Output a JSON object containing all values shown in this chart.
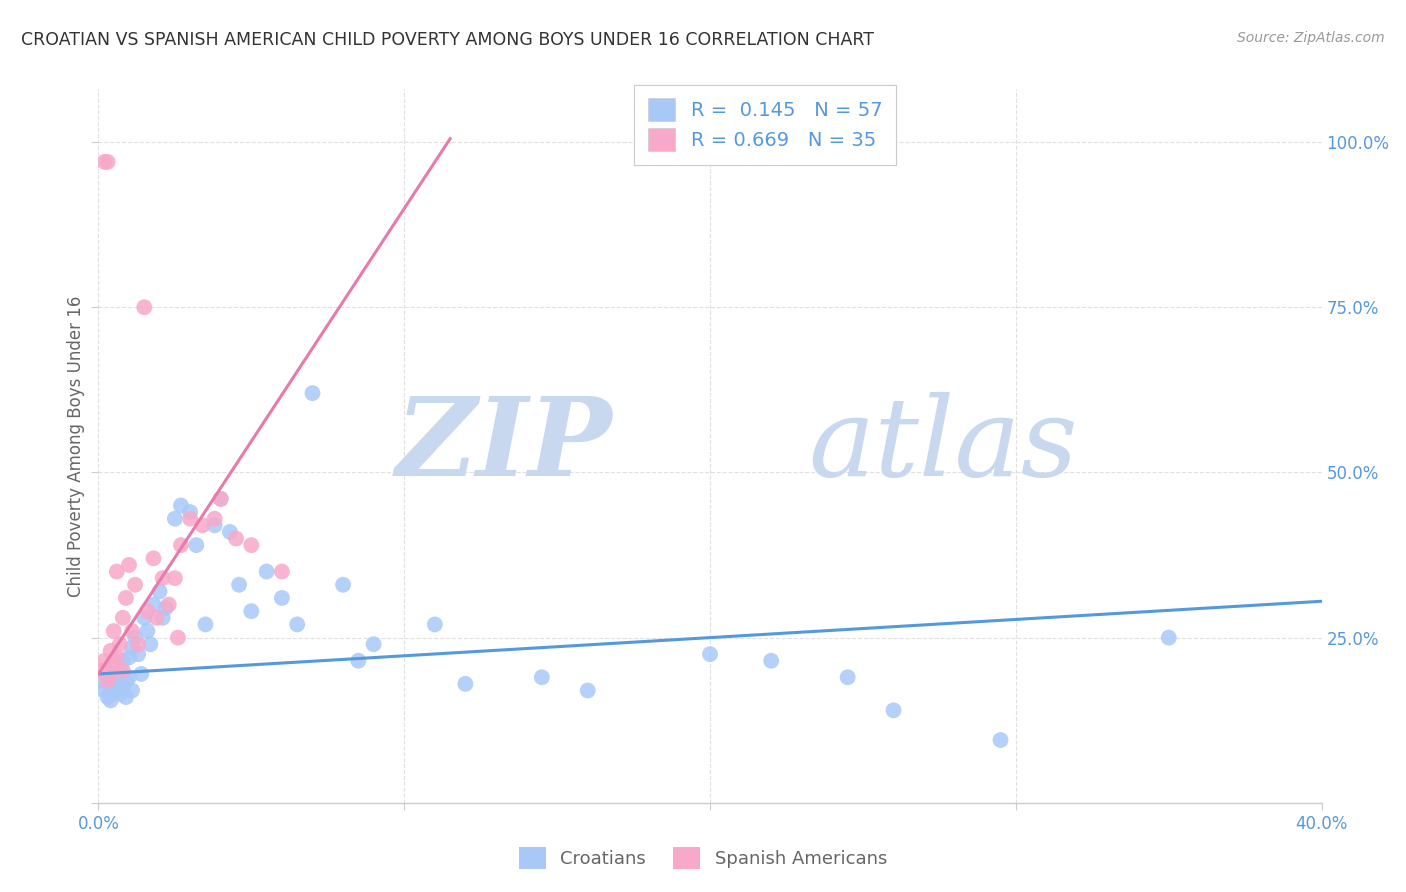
{
  "title": "CROATIAN VS SPANISH AMERICAN CHILD POVERTY AMONG BOYS UNDER 16 CORRELATION CHART",
  "source": "Source: ZipAtlas.com",
  "ylabel": "Child Poverty Among Boys Under 16",
  "xlim": [
    0.0,
    0.4
  ],
  "ylim": [
    0.0,
    1.08
  ],
  "croatian_R": 0.145,
  "croatian_N": 57,
  "spanish_R": 0.669,
  "spanish_N": 35,
  "croatian_color": "#a8c8f8",
  "spanish_color": "#f8a8c8",
  "line_croatian_color": "#5599dd",
  "line_spanish_color": "#e87aab",
  "blue_text_color": "#5599dd",
  "watermark_color": "#dde8f5",
  "background_color": "#ffffff",
  "grid_color": "#dddddd",
  "title_color": "#333333",
  "source_color": "#999999",
  "axis_label_color": "#666666",
  "croatian_x": [
    0.001,
    0.002,
    0.003,
    0.003,
    0.004,
    0.004,
    0.005,
    0.005,
    0.006,
    0.006,
    0.007,
    0.007,
    0.008,
    0.008,
    0.009,
    0.009,
    0.01,
    0.01,
    0.011,
    0.011,
    0.012,
    0.013,
    0.014,
    0.015,
    0.016,
    0.017,
    0.018,
    0.02,
    0.021,
    0.022,
    0.025,
    0.027,
    0.03,
    0.032,
    0.035,
    0.038,
    0.04,
    0.043,
    0.046,
    0.05,
    0.055,
    0.06,
    0.065,
    0.07,
    0.08,
    0.085,
    0.09,
    0.11,
    0.12,
    0.145,
    0.16,
    0.2,
    0.22,
    0.245,
    0.26,
    0.295,
    0.35
  ],
  "croatian_y": [
    0.185,
    0.17,
    0.16,
    0.19,
    0.175,
    0.155,
    0.18,
    0.21,
    0.17,
    0.195,
    0.165,
    0.2,
    0.175,
    0.215,
    0.185,
    0.16,
    0.22,
    0.19,
    0.235,
    0.17,
    0.25,
    0.225,
    0.195,
    0.28,
    0.26,
    0.24,
    0.3,
    0.32,
    0.28,
    0.295,
    0.43,
    0.45,
    0.44,
    0.39,
    0.27,
    0.42,
    0.46,
    0.41,
    0.33,
    0.29,
    0.35,
    0.31,
    0.27,
    0.62,
    0.33,
    0.215,
    0.24,
    0.27,
    0.18,
    0.19,
    0.17,
    0.225,
    0.215,
    0.19,
    0.14,
    0.095,
    0.25
  ],
  "spanish_x": [
    0.001,
    0.002,
    0.002,
    0.003,
    0.003,
    0.004,
    0.004,
    0.005,
    0.005,
    0.006,
    0.006,
    0.007,
    0.008,
    0.008,
    0.009,
    0.01,
    0.011,
    0.012,
    0.013,
    0.015,
    0.016,
    0.018,
    0.019,
    0.021,
    0.023,
    0.026,
    0.03,
    0.034,
    0.04,
    0.05,
    0.06,
    0.025,
    0.027,
    0.038,
    0.045
  ],
  "spanish_y": [
    0.2,
    0.215,
    0.97,
    0.185,
    0.97,
    0.23,
    0.195,
    0.26,
    0.21,
    0.35,
    0.22,
    0.24,
    0.28,
    0.2,
    0.31,
    0.36,
    0.26,
    0.33,
    0.24,
    0.75,
    0.29,
    0.37,
    0.28,
    0.34,
    0.3,
    0.25,
    0.43,
    0.42,
    0.46,
    0.39,
    0.35,
    0.34,
    0.39,
    0.43,
    0.4
  ],
  "cro_line_x": [
    0.0,
    0.4
  ],
  "cro_line_y": [
    0.195,
    0.305
  ],
  "spa_line_x": [
    0.0,
    0.115
  ],
  "spa_line_y": [
    0.195,
    1.005
  ]
}
